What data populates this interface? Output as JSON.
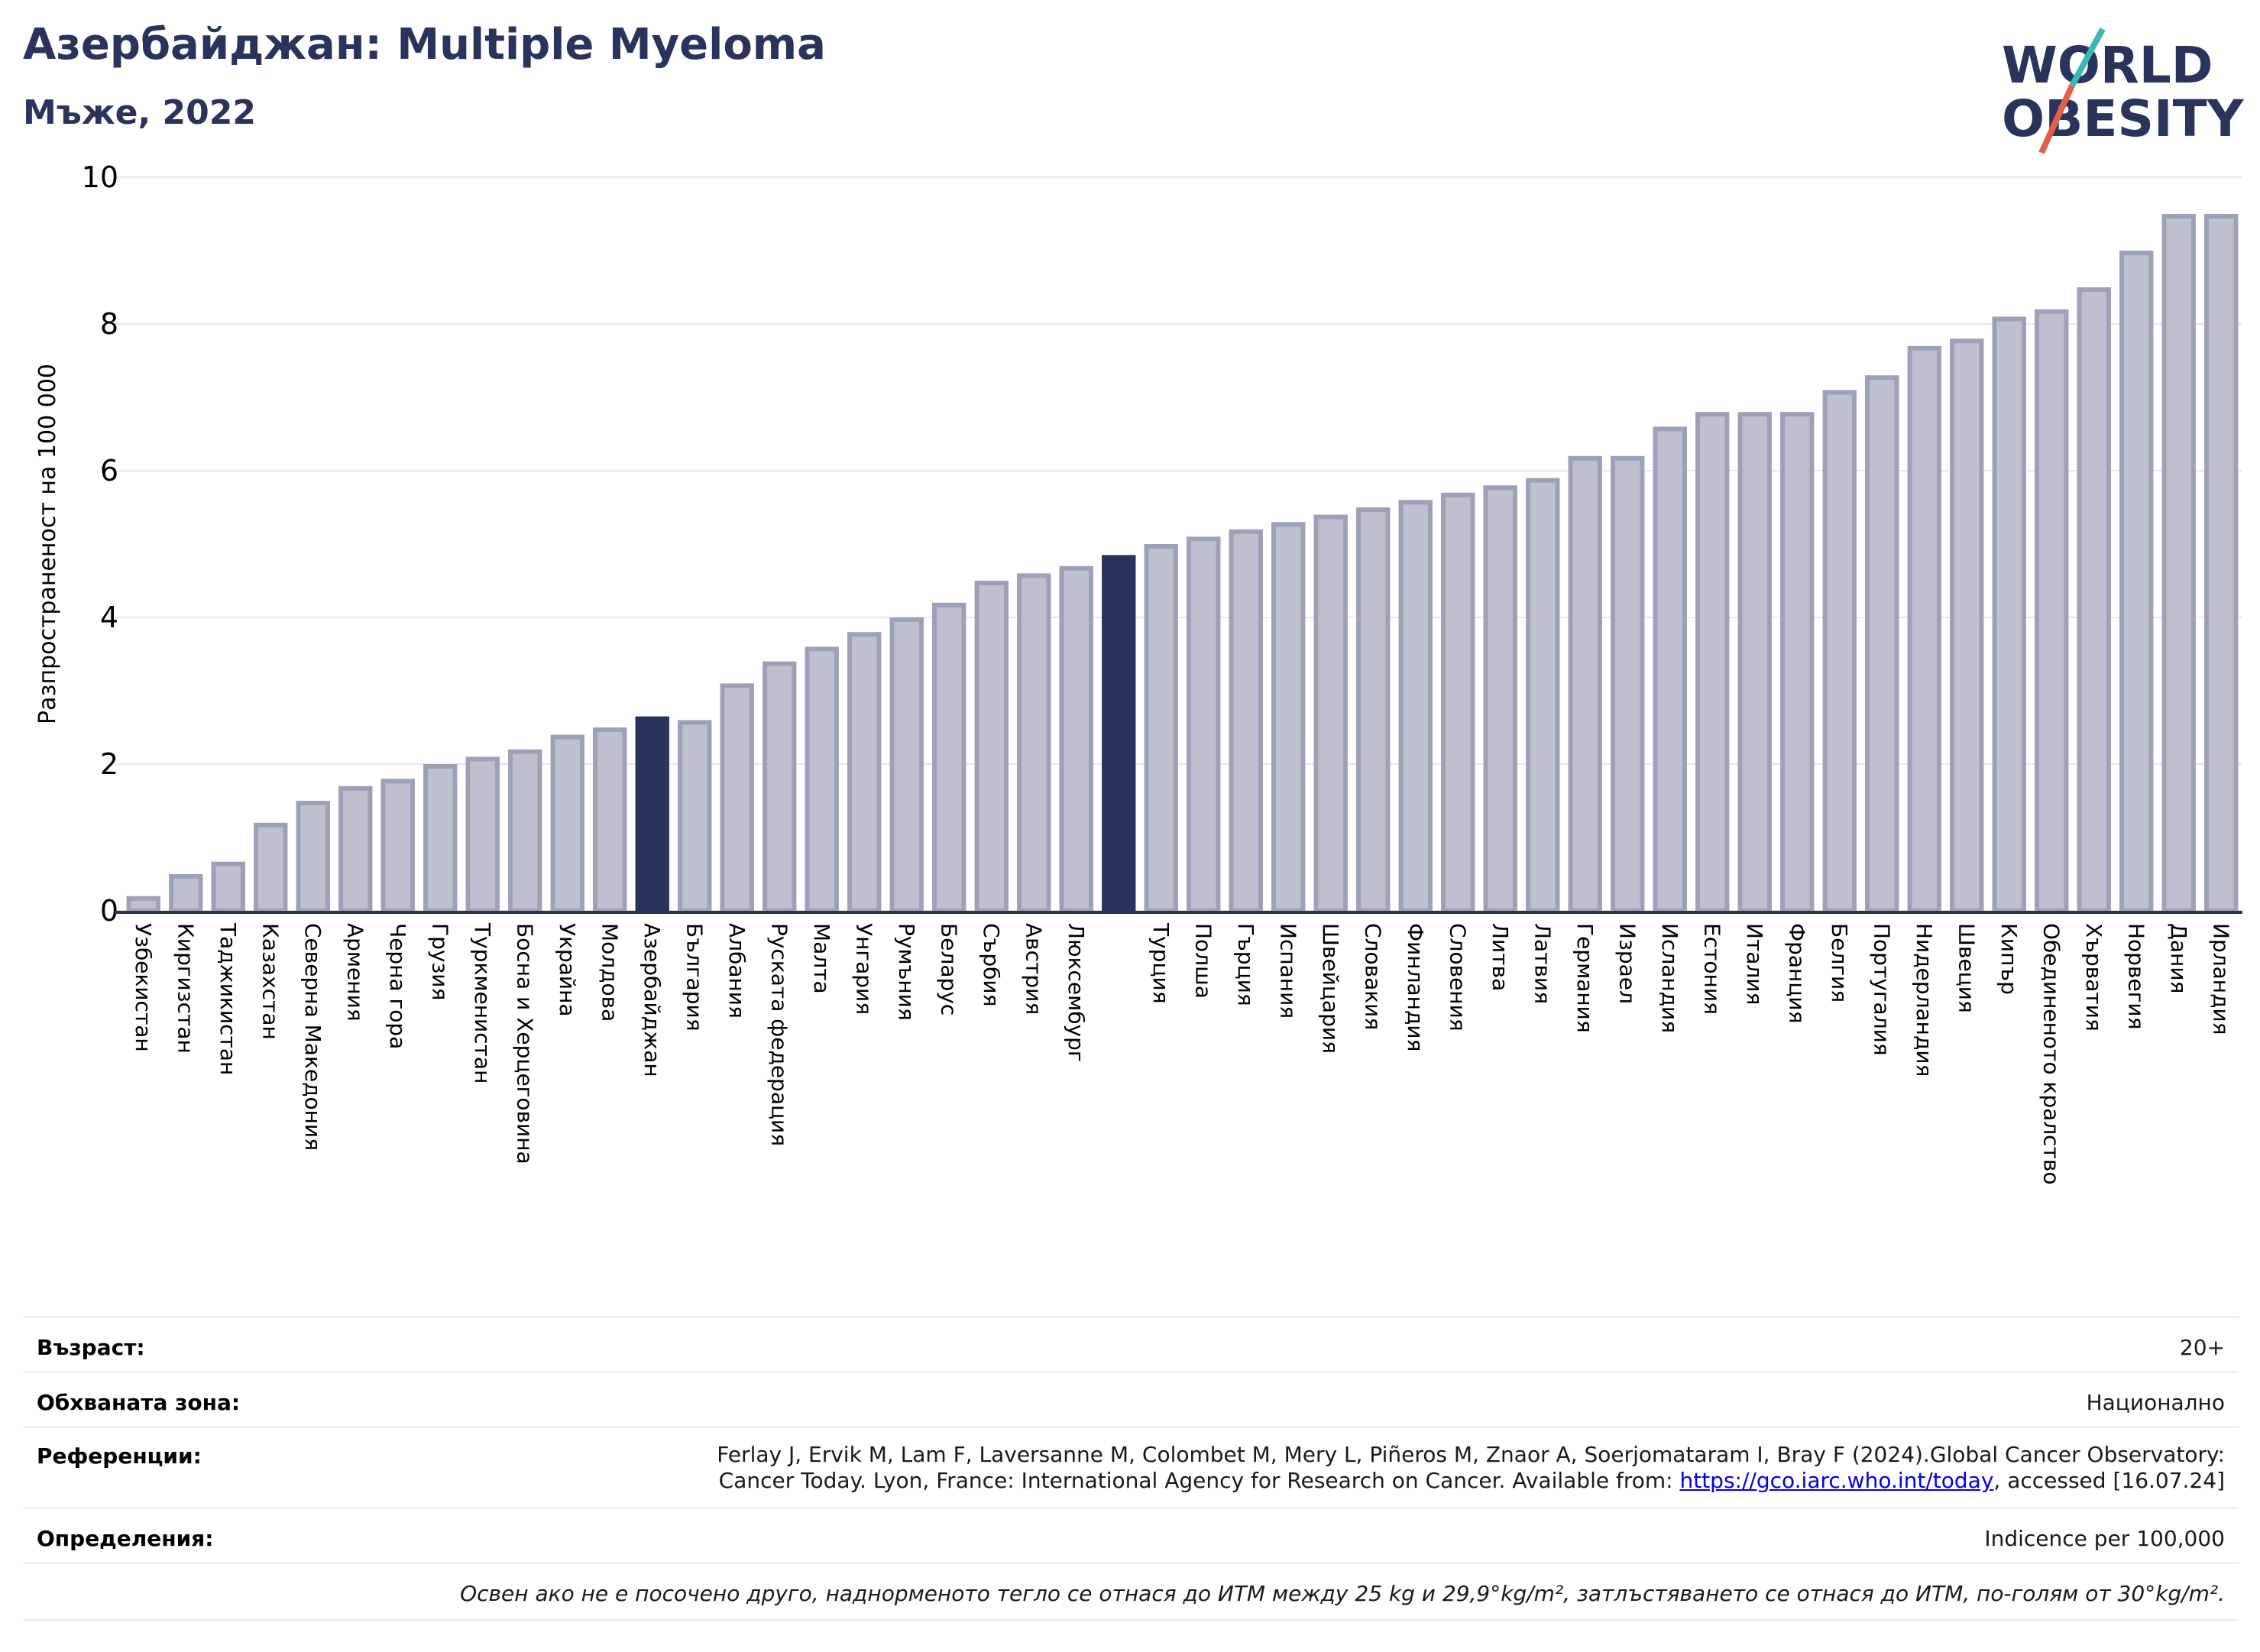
{
  "header": {
    "title": "Азербайджан: Multiple Myeloma",
    "subtitle": "Мъже, 2022"
  },
  "logo": {
    "line1": "WORLD",
    "line2": "OBESITY"
  },
  "colors": {
    "bar": "#bdc1cf",
    "bar_border": "#9ca1b8",
    "highlight": "#29335c",
    "axis": "#29335c",
    "title": "#29335c",
    "link": "#e8b020"
  },
  "chart_data": {
    "type": "bar",
    "ylabel": "Разпространеност  на 100 000",
    "ylim": [
      0,
      10
    ],
    "yticks": [
      0,
      2,
      4,
      6,
      8,
      10
    ],
    "grid": true,
    "categories": [
      "Узбекистан",
      "Киргизстан",
      "Таджикистан",
      "Казахстан",
      "Северна Македония",
      "Армения",
      "Черна гора",
      "Грузия",
      "Туркменистан",
      "Босна и Херцеговина",
      "Украйна",
      "Молдова",
      "Азербайджан",
      "България",
      "Албания",
      "Руската федерация",
      "Малта",
      "Унгария",
      "Румъния",
      "Беларус",
      "Сърбия",
      "Австрия",
      "Люксембург",
      "",
      "Турция",
      "Полша",
      "Гърция",
      "Испания",
      "Швейцария",
      "Словакия",
      "Финландия",
      "Словения",
      "Литва",
      "Латвия",
      "Германия",
      "Израел",
      "Исландия",
      "Естония",
      "Италия",
      "Франция",
      "Белгия",
      "Португалия",
      "Нидерландия",
      "Швеция",
      "Кипър",
      "Обединеното кралство",
      "Хърватия",
      "Норвегия",
      "Дания",
      "Ирландия"
    ],
    "values": [
      0.2,
      0.5,
      0.67,
      1.2,
      1.5,
      1.7,
      1.8,
      2.0,
      2.1,
      2.2,
      2.4,
      2.5,
      2.65,
      2.6,
      3.1,
      3.4,
      3.6,
      3.8,
      4.0,
      4.2,
      4.5,
      4.6,
      4.7,
      4.85,
      5.0,
      5.1,
      5.2,
      5.3,
      5.4,
      5.5,
      5.6,
      5.7,
      5.8,
      5.9,
      6.2,
      6.2,
      6.6,
      6.8,
      6.8,
      6.8,
      7.1,
      7.3,
      7.7,
      7.8,
      8.1,
      8.2,
      8.5,
      9.0,
      9.5,
      9.5
    ],
    "highlight_indices": [
      12,
      23
    ]
  },
  "info": {
    "age_label": "Възраст:",
    "age_value": "20+",
    "coverage_label": "Обхваната зона:",
    "coverage_value": "Национално",
    "references_label": "Референции:",
    "references_line1": "Ferlay J, Ervik M, Lam F, Laversanne M, Colombet M, Mery L, Piñeros M, Znaor A, Soerjomataram I, Bray F (2024).Global Cancer Observatory:",
    "references_line2a": "Cancer Today. Lyon, France: International Agency for Research on Cancer. Available from: ",
    "references_link": "https://gco.iarc.who.int/today",
    "references_line2b": ", accessed [16.07.24]",
    "definitions_label": "Определения:",
    "definitions_value": "Indicence per 100,000",
    "note": "Освен ако не е посочено друго, наднорменото тегло се отнася до ИТМ между 25 kg и 29,9°kg/m², затлъстяването се отнася до ИТМ, по-голям от 30°kg/m²."
  }
}
